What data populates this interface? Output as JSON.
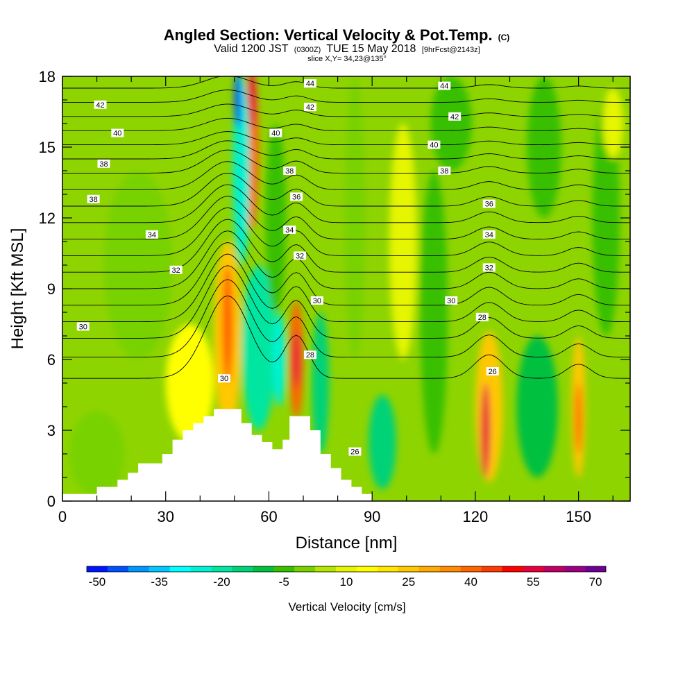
{
  "title": {
    "main": "Angled Section: Vertical Velocity & Pot.Temp.",
    "main_suffix": "(C)",
    "valid_a": "Valid 1200 JST",
    "valid_b": "(0300Z)",
    "valid_c": "TUE 15 May 2018",
    "valid_d": "[9hrFcst@2143z]",
    "slice": "slice X,Y= 34,23@135°"
  },
  "chart_data": {
    "type": "heatmap",
    "xlabel": "Distance [nm]",
    "ylabel": "Height [Kft MSL]",
    "xlim": [
      0,
      165
    ],
    "ylim": [
      0,
      18
    ],
    "xticks": [
      {
        "v": 0,
        "label": "0"
      },
      {
        "v": 30,
        "label": "30"
      },
      {
        "v": 60,
        "label": "60"
      },
      {
        "v": 90,
        "label": "90"
      },
      {
        "v": 120,
        "label": "120"
      },
      {
        "v": 150,
        "label": "150"
      }
    ],
    "yticks": [
      {
        "v": 0,
        "label": "0"
      },
      {
        "v": 3,
        "label": "3"
      },
      {
        "v": 6,
        "label": "6"
      },
      {
        "v": 9,
        "label": "9"
      },
      {
        "v": 12,
        "label": "12"
      },
      {
        "v": 15,
        "label": "15"
      },
      {
        "v": 18,
        "label": "18"
      }
    ],
    "shading": {
      "field": "Vertical Velocity",
      "background_color": "#8ed400",
      "features": [
        {
          "x": 48,
          "y": 7.0,
          "rx": 4.0,
          "ry": 4.0,
          "value": 25
        },
        {
          "x": 48,
          "y": 7.5,
          "rx": 1.6,
          "ry": 2.5,
          "value": 40
        },
        {
          "x": 37,
          "y": 5.0,
          "rx": 7.0,
          "ry": 2.5,
          "value": 15
        },
        {
          "x": 55,
          "y": 15.0,
          "rx": 2.0,
          "ry": 3.5,
          "value": 40
        },
        {
          "x": 55,
          "y": 17.0,
          "rx": 1.2,
          "ry": 1.2,
          "value": 55
        },
        {
          "x": 68,
          "y": 6.0,
          "rx": 2.0,
          "ry": 2.5,
          "value": 40
        },
        {
          "x": 68,
          "y": 6.0,
          "rx": 0.9,
          "ry": 1.2,
          "value": 55
        },
        {
          "x": 52,
          "y": 14.0,
          "rx": 2.5,
          "ry": 4.0,
          "value": -25
        },
        {
          "x": 51,
          "y": 17.0,
          "rx": 1.0,
          "ry": 1.2,
          "value": -45
        },
        {
          "x": 57,
          "y": 6.5,
          "rx": 5.0,
          "ry": 3.5,
          "value": -20
        },
        {
          "x": 63,
          "y": 6.0,
          "rx": 2.0,
          "ry": 2.0,
          "value": -25
        },
        {
          "x": 75,
          "y": 5.0,
          "rx": 2.5,
          "ry": 3.0,
          "value": -15
        },
        {
          "x": 62,
          "y": 12.0,
          "rx": 3.0,
          "ry": 4.0,
          "value": -5
        },
        {
          "x": 93,
          "y": 2.5,
          "rx": 4.0,
          "ry": 2.0,
          "value": -15
        },
        {
          "x": 124,
          "y": 4.0,
          "rx": 4.0,
          "ry": 3.2,
          "value": 25
        },
        {
          "x": 123,
          "y": 3.0,
          "rx": 1.3,
          "ry": 2.0,
          "value": 55
        },
        {
          "x": 150,
          "y": 4.0,
          "rx": 2.0,
          "ry": 3.0,
          "value": 25
        },
        {
          "x": 150,
          "y": 3.5,
          "rx": 0.9,
          "ry": 1.5,
          "value": 40
        },
        {
          "x": 138,
          "y": 4.0,
          "rx": 6.0,
          "ry": 3.0,
          "value": -10
        },
        {
          "x": 108,
          "y": 8.0,
          "rx": 4.0,
          "ry": 6.0,
          "value": -5
        },
        {
          "x": 113,
          "y": 16.0,
          "rx": 6.0,
          "ry": 2.0,
          "value": -5
        },
        {
          "x": 140,
          "y": 15.0,
          "rx": 5.0,
          "ry": 3.0,
          "value": -5
        },
        {
          "x": 158,
          "y": 12.0,
          "rx": 4.0,
          "ry": 5.0,
          "value": -5
        },
        {
          "x": 85,
          "y": 12.0,
          "rx": 3.0,
          "ry": 6.0,
          "value": 0
        },
        {
          "x": 99,
          "y": 11.0,
          "rx": 4.0,
          "ry": 5.0,
          "value": 10
        },
        {
          "x": 22,
          "y": 10.0,
          "rx": 10.0,
          "ry": 4.0,
          "value": 0
        },
        {
          "x": 10,
          "y": 2.0,
          "rx": 8.0,
          "ry": 1.8,
          "value": 0
        },
        {
          "x": 160,
          "y": 16.0,
          "rx": 3.0,
          "ry": 1.5,
          "value": 10
        }
      ]
    },
    "contours": {
      "field": "Potential Temperature",
      "levels": [
        26,
        27,
        28,
        29,
        30,
        31,
        32,
        33,
        34,
        35,
        36,
        37,
        38,
        39,
        40,
        41,
        42,
        43,
        44
      ],
      "base_heights": [
        5.2,
        6.1,
        6.9,
        7.6,
        8.3,
        9.0,
        9.7,
        10.4,
        11.1,
        11.8,
        12.5,
        13.2,
        13.9,
        14.5,
        15.1,
        15.7,
        16.3,
        16.9,
        17.5
      ],
      "bumps": [
        {
          "x": 48,
          "dy": 3.5,
          "w": 9
        },
        {
          "x": 68,
          "dy": 1.8,
          "w": 5
        },
        {
          "x": 124,
          "dy": 1.0,
          "w": 6
        },
        {
          "x": 150,
          "dy": 0.6,
          "w": 5
        }
      ],
      "labels": [
        {
          "text": "44",
          "x": 72,
          "y": 17.7
        },
        {
          "text": "44",
          "x": 111,
          "y": 17.6
        },
        {
          "text": "42",
          "x": 11,
          "y": 16.8
        },
        {
          "text": "42",
          "x": 72,
          "y": 16.7
        },
        {
          "text": "42",
          "x": 114,
          "y": 16.3
        },
        {
          "text": "40",
          "x": 16,
          "y": 15.6
        },
        {
          "text": "40",
          "x": 62,
          "y": 15.6
        },
        {
          "text": "40",
          "x": 108,
          "y": 15.1
        },
        {
          "text": "38",
          "x": 12,
          "y": 14.3
        },
        {
          "text": "38",
          "x": 66,
          "y": 14.0
        },
        {
          "text": "38",
          "x": 111,
          "y": 14.0
        },
        {
          "text": "38",
          "x": 9,
          "y": 12.8
        },
        {
          "text": "36",
          "x": 68,
          "y": 12.9
        },
        {
          "text": "36",
          "x": 124,
          "y": 12.6
        },
        {
          "text": "34",
          "x": 26,
          "y": 11.3
        },
        {
          "text": "34",
          "x": 66,
          "y": 11.5
        },
        {
          "text": "34",
          "x": 124,
          "y": 11.3
        },
        {
          "text": "32",
          "x": 33,
          "y": 9.8
        },
        {
          "text": "32",
          "x": 69,
          "y": 10.4
        },
        {
          "text": "32",
          "x": 124,
          "y": 9.9
        },
        {
          "text": "30",
          "x": 6,
          "y": 7.4
        },
        {
          "text": "30",
          "x": 74,
          "y": 8.5
        },
        {
          "text": "30",
          "x": 113,
          "y": 8.5
        },
        {
          "text": "30",
          "x": 47,
          "y": 5.2
        },
        {
          "text": "28",
          "x": 72,
          "y": 6.2
        },
        {
          "text": "28",
          "x": 122,
          "y": 7.8
        },
        {
          "text": "26",
          "x": 125,
          "y": 5.5
        },
        {
          "text": "26",
          "x": 85,
          "y": 2.1
        }
      ]
    },
    "terrain_steps": [
      [
        0,
        0.3
      ],
      [
        10,
        0.6
      ],
      [
        16,
        0.9
      ],
      [
        19,
        1.2
      ],
      [
        22,
        1.6
      ],
      [
        29,
        2.0
      ],
      [
        32,
        2.6
      ],
      [
        35,
        3.0
      ],
      [
        38,
        3.3
      ],
      [
        41,
        3.6
      ],
      [
        44,
        3.9
      ],
      [
        49,
        3.9
      ],
      [
        52,
        3.3
      ],
      [
        55,
        2.8
      ],
      [
        58,
        2.5
      ],
      [
        61,
        2.2
      ],
      [
        64,
        2.6
      ],
      [
        66,
        3.6
      ],
      [
        70,
        3.6
      ],
      [
        72,
        3.0
      ],
      [
        75,
        2.0
      ],
      [
        78,
        1.4
      ],
      [
        81,
        0.9
      ],
      [
        84,
        0.6
      ],
      [
        87,
        0.3
      ],
      [
        90,
        0.0
      ]
    ],
    "terrain_color": "#ffffff",
    "colorbar": {
      "label": "Vertical Velocity [cm/s]",
      "levels": [
        -50,
        -45,
        -40,
        -35,
        -30,
        -25,
        -20,
        -15,
        -10,
        -5,
        0,
        5,
        10,
        15,
        20,
        25,
        30,
        35,
        40,
        45,
        50,
        55,
        60,
        65,
        70,
        75
      ],
      "colors": [
        "#0014ff",
        "#0050ff",
        "#0096ff",
        "#00c8ff",
        "#00ffff",
        "#00f0d0",
        "#00e6a0",
        "#00d278",
        "#00c040",
        "#38c000",
        "#78d200",
        "#b4e600",
        "#e6f500",
        "#ffff00",
        "#ffe600",
        "#ffc800",
        "#ffaa00",
        "#ff8c00",
        "#ff6400",
        "#ff3c00",
        "#ff0000",
        "#e6003c",
        "#be0064",
        "#9b0082",
        "#6e0096"
      ],
      "tick_labels": [
        {
          "v": -50,
          "label": "-50"
        },
        {
          "v": -35,
          "label": "-35"
        },
        {
          "v": -20,
          "label": "-20"
        },
        {
          "v": -5,
          "label": "-5"
        },
        {
          "v": 10,
          "label": "10"
        },
        {
          "v": 25,
          "label": "25"
        },
        {
          "v": 40,
          "label": "40"
        },
        {
          "v": 55,
          "label": "55"
        },
        {
          "v": 70,
          "label": "70"
        }
      ]
    }
  }
}
